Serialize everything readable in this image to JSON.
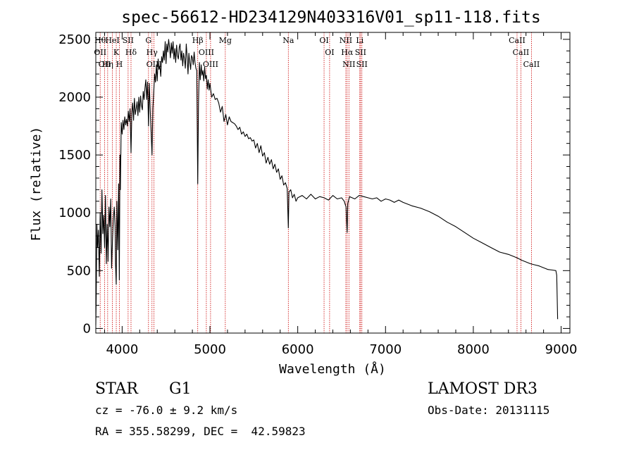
{
  "chart_data": {
    "type": "line",
    "title": "spec-56612-HD234129N403316V01_sp11-118.fits",
    "xlabel": "Wavelength (Å)",
    "ylabel": "Flux (relative)",
    "xlim": [
      3700,
      9100
    ],
    "ylim": [
      -40,
      2560
    ],
    "xticks": [
      4000,
      5000,
      6000,
      7000,
      8000,
      9000
    ],
    "yticks": [
      0,
      500,
      1000,
      1500,
      2000,
      2500
    ],
    "series": [
      {
        "name": "flux",
        "x": [
          3700,
          3705,
          3712,
          3720,
          3730,
          3740,
          3750,
          3760,
          3770,
          3780,
          3790,
          3800,
          3810,
          3820,
          3830,
          3835,
          3840,
          3850,
          3860,
          3870,
          3880,
          3890,
          3900,
          3910,
          3920,
          3925,
          3933,
          3940,
          3950,
          3960,
          3968,
          3975,
          3980,
          3990,
          4000,
          4010,
          4020,
          4030,
          4040,
          4050,
          4060,
          4070,
          4080,
          4090,
          4101,
          4110,
          4120,
          4130,
          4140,
          4150,
          4160,
          4170,
          4180,
          4190,
          4200,
          4210,
          4220,
          4230,
          4240,
          4250,
          4260,
          4270,
          4280,
          4290,
          4300,
          4310,
          4320,
          4330,
          4340,
          4350,
          4360,
          4370,
          4380,
          4390,
          4400,
          4410,
          4420,
          4430,
          4440,
          4450,
          4460,
          4470,
          4480,
          4490,
          4500,
          4510,
          4520,
          4530,
          4540,
          4550,
          4560,
          4570,
          4580,
          4590,
          4600,
          4610,
          4620,
          4630,
          4640,
          4650,
          4660,
          4670,
          4680,
          4690,
          4700,
          4710,
          4720,
          4730,
          4740,
          4750,
          4760,
          4770,
          4780,
          4790,
          4800,
          4810,
          4820,
          4830,
          4840,
          4850,
          4861,
          4870,
          4880,
          4890,
          4900,
          4910,
          4920,
          4930,
          4940,
          4950,
          4960,
          4970,
          4980,
          4990,
          5000,
          5020,
          5040,
          5060,
          5080,
          5100,
          5120,
          5140,
          5160,
          5180,
          5200,
          5220,
          5240,
          5260,
          5280,
          5300,
          5320,
          5340,
          5360,
          5380,
          5400,
          5420,
          5440,
          5460,
          5480,
          5500,
          5520,
          5540,
          5560,
          5580,
          5600,
          5620,
          5640,
          5660,
          5680,
          5700,
          5720,
          5740,
          5760,
          5780,
          5800,
          5820,
          5840,
          5860,
          5880,
          5893,
          5900,
          5920,
          5940,
          5960,
          5980,
          6000,
          6050,
          6100,
          6150,
          6200,
          6250,
          6300,
          6350,
          6400,
          6450,
          6500,
          6530,
          6550,
          6563,
          6570,
          6590,
          6620,
          6650,
          6700,
          6750,
          6800,
          6850,
          6900,
          6950,
          7000,
          7050,
          7100,
          7150,
          7200,
          7300,
          7400,
          7500,
          7600,
          7700,
          7800,
          7900,
          8000,
          8100,
          8200,
          8300,
          8400,
          8450,
          8500,
          8550,
          8600,
          8650,
          8700,
          8750,
          8800,
          8850,
          8900,
          8940,
          8950,
          8960
        ],
        "values": [
          30,
          280,
          900,
          700,
          850,
          450,
          1000,
          650,
          1200,
          820,
          980,
          700,
          1150,
          560,
          900,
          760,
          580,
          1050,
          880,
          1120,
          520,
          760,
          950,
          1050,
          880,
          560,
          380,
          1100,
          680,
          1250,
          420,
          1500,
          1200,
          1780,
          1680,
          1800,
          1720,
          1830,
          1760,
          1810,
          1750,
          1880,
          1790,
          1900,
          1520,
          1860,
          1950,
          1800,
          1990,
          1850,
          1900,
          1960,
          1840,
          2000,
          1870,
          2010,
          1930,
          1890,
          2050,
          1980,
          2080,
          2150,
          1980,
          2130,
          1750,
          2120,
          1880,
          1700,
          1500,
          1900,
          2050,
          2200,
          2130,
          2280,
          2140,
          2330,
          2240,
          2270,
          2180,
          2350,
          2300,
          2400,
          2320,
          2480,
          2290,
          2460,
          2390,
          2500,
          2430,
          2340,
          2470,
          2380,
          2480,
          2330,
          2420,
          2300,
          2450,
          2360,
          2330,
          2430,
          2460,
          2320,
          2400,
          2270,
          2380,
          2330,
          2250,
          2460,
          2350,
          2200,
          2380,
          2300,
          2240,
          2360,
          2340,
          2280,
          2390,
          2300,
          2250,
          2230,
          1250,
          1950,
          2300,
          2150,
          2280,
          2190,
          2230,
          2140,
          2260,
          2160,
          2190,
          2070,
          2150,
          2060,
          2120,
          2000,
          2030,
          1980,
          1990,
          1950,
          1870,
          1920,
          1790,
          1850,
          1760,
          1830,
          1790,
          1780,
          1770,
          1750,
          1720,
          1740,
          1680,
          1700,
          1660,
          1680,
          1640,
          1650,
          1620,
          1630,
          1560,
          1600,
          1520,
          1580,
          1490,
          1520,
          1430,
          1480,
          1420,
          1460,
          1380,
          1420,
          1350,
          1380,
          1290,
          1320,
          1240,
          1260,
          1210,
          870,
          1180,
          1200,
          1130,
          1160,
          1100,
          1130,
          1150,
          1120,
          1160,
          1120,
          1140,
          1130,
          1110,
          1150,
          1120,
          1130,
          1100,
          1050,
          830,
          1080,
          1140,
          1130,
          1120,
          1150,
          1140,
          1130,
          1120,
          1130,
          1100,
          1120,
          1110,
          1090,
          1110,
          1090,
          1060,
          1040,
          1010,
          970,
          920,
          880,
          830,
          780,
          740,
          700,
          660,
          640,
          625,
          610,
          590,
          575,
          560,
          550,
          540,
          525,
          510,
          505,
          500,
          460,
          80
        ]
      }
    ],
    "lines": [
      {
        "x": 3750,
        "labels": [
          "Hθ",
          "OII"
        ]
      },
      {
        "x": 3800,
        "labels": [
          "OII"
        ]
      },
      {
        "x": 3835,
        "labels": [
          "Hη"
        ]
      },
      {
        "x": 3889,
        "labels": [
          "HeI"
        ]
      },
      {
        "x": 3933,
        "labels": [
          "K"
        ]
      },
      {
        "x": 3968,
        "labels": [
          "H"
        ]
      },
      {
        "x": 4068,
        "labels": [
          "SII"
        ]
      },
      {
        "x": 4101,
        "labels": [
          "Hδ"
        ]
      },
      {
        "x": 4300,
        "labels": [
          "G"
        ]
      },
      {
        "x": 4340,
        "labels": [
          "Hγ"
        ]
      },
      {
        "x": 4363,
        "labels": [
          "OIII"
        ]
      },
      {
        "x": 4861,
        "labels": [
          "Hβ"
        ]
      },
      {
        "x": 4959,
        "labels": [
          "OIII"
        ]
      },
      {
        "x": 5007,
        "labels": [
          "OIII"
        ]
      },
      {
        "x": 5175,
        "labels": [
          "Mg"
        ]
      },
      {
        "x": 5893,
        "labels": [
          "Na"
        ]
      },
      {
        "x": 6300,
        "labels": [
          "OI"
        ]
      },
      {
        "x": 6363,
        "labels": [
          "OI"
        ]
      },
      {
        "x": 6548,
        "labels": [
          "NII"
        ]
      },
      {
        "x": 6563,
        "labels": [
          "Hα"
        ]
      },
      {
        "x": 6583,
        "labels": [
          "NII"
        ]
      },
      {
        "x": 6707,
        "labels": [
          "Li"
        ]
      },
      {
        "x": 6716,
        "labels": [
          "SII"
        ]
      },
      {
        "x": 6731,
        "labels": [
          "SII"
        ]
      },
      {
        "x": 8498,
        "labels": [
          "CaII"
        ]
      },
      {
        "x": 8542,
        "labels": [
          "CaII"
        ]
      },
      {
        "x": 8662,
        "labels": [
          "CaII"
        ]
      }
    ],
    "grid": false,
    "legend": "none"
  },
  "footer": {
    "class_label": "STAR",
    "subclass": "G1",
    "redshift": "cz = -76.0 ± 9.2 km/s",
    "coordinates": "RA = 355.58299, DEC =  42.59823",
    "survey": "LAMOST DR3",
    "obs_date": "Obs-Date: 20131115"
  },
  "colors": {
    "spectrum": "#000000",
    "line_markers": "#cc0000",
    "axes": "#000000"
  }
}
